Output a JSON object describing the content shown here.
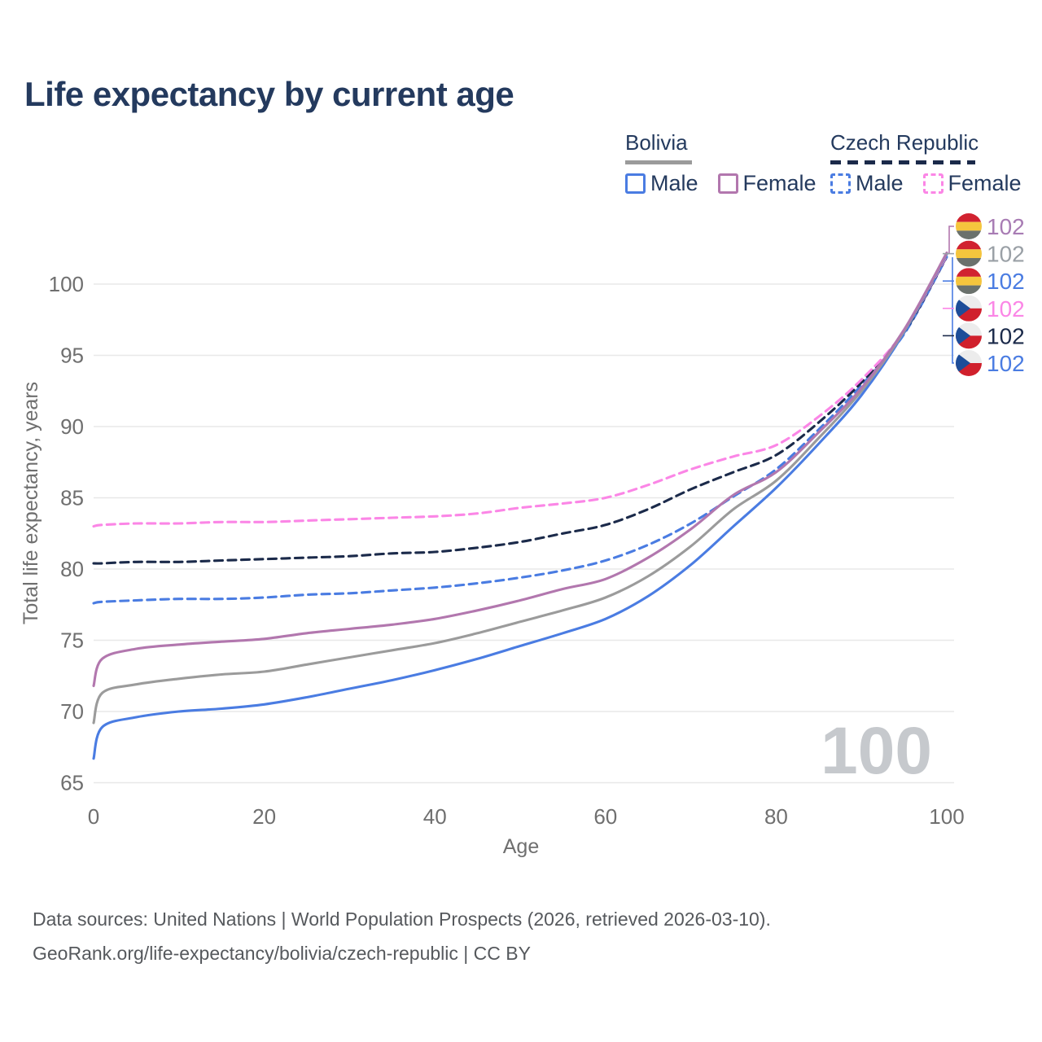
{
  "title": "Life expectancy by current age",
  "legend": {
    "groups": [
      {
        "label": "Bolivia",
        "underline_style": "solid",
        "underline_color": "#9b9b9b",
        "items": [
          {
            "label": "Male",
            "color": "#4a7ce2",
            "dashed": false
          },
          {
            "label": "Female",
            "color": "#b277ae",
            "dashed": false
          }
        ]
      },
      {
        "label": "Czech Republic",
        "underline_style": "dashed",
        "underline_color": "#1b2a4a",
        "items": [
          {
            "label": "Male",
            "color": "#4a7ce2",
            "dashed": true
          },
          {
            "label": "Female",
            "color": "#fb86e6",
            "dashed": true
          }
        ]
      }
    ]
  },
  "axes": {
    "x_label": "Age",
    "y_label": "Total life expectancy, years",
    "x_ticks": [
      0,
      20,
      40,
      60,
      80,
      100
    ],
    "y_ticks": [
      65,
      70,
      75,
      80,
      85,
      90,
      95,
      100
    ],
    "x_range": [
      0,
      100
    ],
    "y_range": [
      65,
      102.5
    ],
    "grid": "horizontal-only"
  },
  "watermark": "100",
  "chart_data": {
    "type": "line",
    "title": "Life expectancy by current age",
    "xlabel": "Age",
    "ylabel": "Total life expectancy, years",
    "legend_position": "top-right",
    "x": [
      0,
      1,
      5,
      10,
      15,
      20,
      25,
      30,
      35,
      40,
      45,
      50,
      55,
      60,
      65,
      70,
      75,
      80,
      85,
      90,
      95,
      100
    ],
    "series": [
      {
        "id": "czech-male",
        "name": "Czech Republic Male",
        "color": "#4a7ce2",
        "dashed": true,
        "values": [
          77.6,
          77.7,
          77.8,
          77.9,
          77.9,
          78.0,
          78.2,
          78.3,
          78.5,
          78.7,
          79.0,
          79.4,
          79.9,
          80.6,
          81.7,
          83.2,
          85.1,
          87.0,
          89.8,
          92.9,
          96.5,
          101.9
        ]
      },
      {
        "id": "czech-both",
        "name": "Czech Republic",
        "color": "#1b2a4a",
        "dashed": true,
        "values": [
          80.4,
          80.4,
          80.5,
          80.5,
          80.6,
          80.7,
          80.8,
          80.9,
          81.1,
          81.2,
          81.5,
          81.9,
          82.5,
          83.1,
          84.2,
          85.6,
          86.8,
          88.0,
          90.3,
          93.1,
          96.6,
          101.95
        ]
      },
      {
        "id": "czech-female",
        "name": "Czech Republic Female",
        "color": "#fb86e6",
        "dashed": true,
        "values": [
          83.0,
          83.1,
          83.2,
          83.2,
          83.3,
          83.3,
          83.4,
          83.5,
          83.6,
          83.7,
          83.9,
          84.3,
          84.6,
          85.0,
          85.9,
          87.0,
          87.9,
          88.7,
          90.7,
          93.3,
          96.7,
          102.0
        ]
      },
      {
        "id": "bolivia-male",
        "name": "Bolivia Male",
        "color": "#4a7ce2",
        "dashed": false,
        "values": [
          66.7,
          68.9,
          69.6,
          70.0,
          70.2,
          70.5,
          71.0,
          71.6,
          72.2,
          72.9,
          73.7,
          74.6,
          75.5,
          76.5,
          78.1,
          80.3,
          83.0,
          85.7,
          88.8,
          92.2,
          96.6,
          102.1
        ]
      },
      {
        "id": "bolivia-both",
        "name": "Bolivia",
        "color": "#9b9b9b",
        "dashed": false,
        "values": [
          69.2,
          71.3,
          71.9,
          72.3,
          72.6,
          72.8,
          73.3,
          73.8,
          74.3,
          74.8,
          75.5,
          76.3,
          77.1,
          78.0,
          79.5,
          81.6,
          84.2,
          86.2,
          89.2,
          92.5,
          96.7,
          102.15
        ]
      },
      {
        "id": "bolivia-female",
        "name": "Bolivia Female",
        "color": "#b277ae",
        "dashed": false,
        "values": [
          71.8,
          73.7,
          74.4,
          74.7,
          74.9,
          75.1,
          75.5,
          75.8,
          76.1,
          76.5,
          77.1,
          77.8,
          78.6,
          79.3,
          80.8,
          82.8,
          85.2,
          86.8,
          89.6,
          92.7,
          96.8,
          102.2
        ]
      }
    ]
  },
  "end_markers": [
    {
      "flag": "bolivia",
      "series": "Bolivia Female",
      "value": "102",
      "color": "#a87cb4"
    },
    {
      "flag": "bolivia",
      "series": "Bolivia",
      "value": "102",
      "color": "#9aa0a6"
    },
    {
      "flag": "bolivia",
      "series": "Bolivia Male",
      "value": "102",
      "color": "#4a7ce2"
    },
    {
      "flag": "czech",
      "series": "Czech Republic Female",
      "value": "102",
      "color": "#fb86e6"
    },
    {
      "flag": "czech",
      "series": "Czech Republic",
      "value": "102",
      "color": "#1b2a4a"
    },
    {
      "flag": "czech",
      "series": "Czech Republic Male",
      "value": "102",
      "color": "#4a7ce2"
    }
  ],
  "flag_colors": {
    "bolivia_red": "#d12230",
    "bolivia_yellow": "#f5c53d",
    "bolivia_green": "#6a716c",
    "czech_white": "#ececec",
    "czech_red": "#d0202c",
    "czech_blue": "#1d4d99"
  },
  "footer": {
    "line1": "Data sources: United Nations | World Population Prospects (2026, retrieved 2026-03-10).",
    "line2": "GeoRank.org/life-expectancy/bolivia/czech-republic | CC BY"
  }
}
